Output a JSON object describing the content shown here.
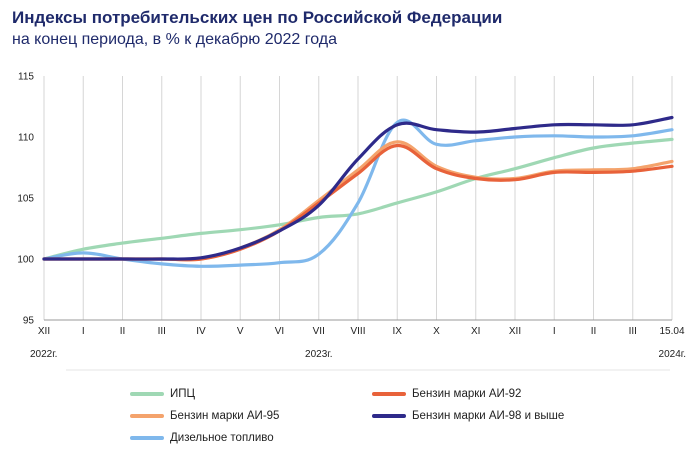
{
  "title": "Индексы потребительских цен по Российской Федерации",
  "subtitle": "на конец периода, в % к декабрю 2022 года",
  "chart_data": {
    "type": "line",
    "ylim": [
      95,
      115
    ],
    "yticks": [
      95,
      100,
      105,
      110,
      115
    ],
    "grid": "vertical",
    "legend_position": "bottom",
    "categories": [
      "XII",
      "I",
      "II",
      "III",
      "IV",
      "V",
      "VI",
      "VII",
      "VIII",
      "IX",
      "X",
      "XI",
      "XII",
      "I",
      "II",
      "III",
      "15.04"
    ],
    "year_labels": [
      {
        "at": 0,
        "text": "2022г."
      },
      {
        "at": 7,
        "text": "2023г."
      },
      {
        "at": 16,
        "text": "2024г."
      }
    ],
    "series": [
      {
        "name": "ИПЦ",
        "color": "#9fd8b4",
        "values": [
          100,
          100.8,
          101.3,
          101.7,
          102.1,
          102.4,
          102.8,
          103.4,
          103.7,
          104.6,
          105.5,
          106.6,
          107.4,
          108.3,
          109.1,
          109.5,
          109.8
        ]
      },
      {
        "name": "Бензин марки АИ-92",
        "color": "#e8623a",
        "values": [
          100,
          100,
          100,
          100,
          100,
          100.8,
          102.3,
          104.6,
          107.0,
          109.3,
          107.4,
          106.6,
          106.5,
          107.1,
          107.1,
          107.2,
          107.6
        ]
      },
      {
        "name": "Бензин марки АИ-95",
        "color": "#f4a36c",
        "values": [
          100,
          100,
          100,
          100,
          100,
          100.9,
          102.4,
          104.8,
          107.3,
          109.6,
          107.6,
          106.7,
          106.6,
          107.2,
          107.3,
          107.4,
          108.0
        ]
      },
      {
        "name": "Бензин марки АИ-98 и выше",
        "color": "#2e2a8a",
        "values": [
          100,
          100,
          100,
          100,
          100.1,
          100.9,
          102.3,
          104.4,
          108.2,
          111.0,
          110.6,
          110.4,
          110.7,
          111.0,
          111.0,
          111.0,
          111.6
        ]
      },
      {
        "name": "Дизельное топливо",
        "color": "#7fb8ec",
        "values": [
          100,
          100.5,
          100,
          99.6,
          99.4,
          99.5,
          99.7,
          100.4,
          104.6,
          111.2,
          109.4,
          109.7,
          110.0,
          110.1,
          110.0,
          110.1,
          110.6
        ]
      }
    ]
  }
}
